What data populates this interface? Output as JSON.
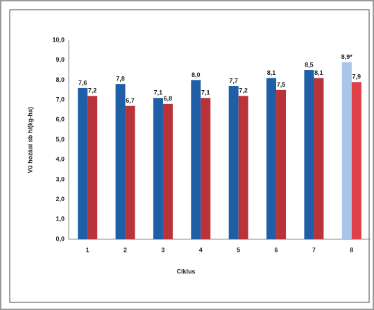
{
  "chart_data": {
    "type": "bar",
    "x_label": "Ciklus",
    "y_label": "Vű hozási sb h/(kg-ha)",
    "categories": [
      "1",
      "2",
      "3",
      "4",
      "5",
      "6",
      "7",
      "8"
    ],
    "series": [
      {
        "color": "#1f5fa8",
        "colors": [
          "#1f5fa8",
          "#1f5fa8",
          "#1f5fa8",
          "#1f5fa8",
          "#1f5fa8",
          "#1f5fa8",
          "#1f5fa8",
          "#a9c5e8"
        ],
        "values": [
          7.6,
          7.8,
          7.1,
          8.0,
          7.7,
          8.1,
          8.5,
          8.9
        ],
        "value_labels": [
          "7,6",
          "7,8",
          "7,1",
          "8,0",
          "7,7",
          "8,1",
          "8,5",
          "8,9*"
        ]
      },
      {
        "color": "#b8333a",
        "colors": [
          "#b8333a",
          "#b8333a",
          "#b8333a",
          "#b8333a",
          "#b8333a",
          "#b8333a",
          "#b8333a",
          "#e0404a"
        ],
        "values": [
          7.2,
          6.7,
          6.8,
          7.1,
          7.2,
          7.5,
          8.1,
          7.9
        ],
        "value_labels": [
          "7,2",
          "6,7",
          "6,8",
          "7,1",
          "7,2",
          "7,5",
          "8,1",
          "7,9"
        ]
      }
    ],
    "ylim": [
      0,
      10
    ],
    "yticks": [
      {
        "value": 0,
        "label": "0,0"
      },
      {
        "value": 1,
        "label": "1,0"
      },
      {
        "value": 2,
        "label": "2,0"
      },
      {
        "value": 3,
        "label": "3,0"
      },
      {
        "value": 4,
        "label": "4,0"
      },
      {
        "value": 5,
        "label": "5,0"
      },
      {
        "value": 6,
        "label": "6,0"
      },
      {
        "value": 7,
        "label": "7,0"
      },
      {
        "value": 8,
        "label": "8,0"
      },
      {
        "value": 9,
        "label": "9,0"
      },
      {
        "value": 10,
        "label": "10,0"
      }
    ],
    "grid": false
  }
}
